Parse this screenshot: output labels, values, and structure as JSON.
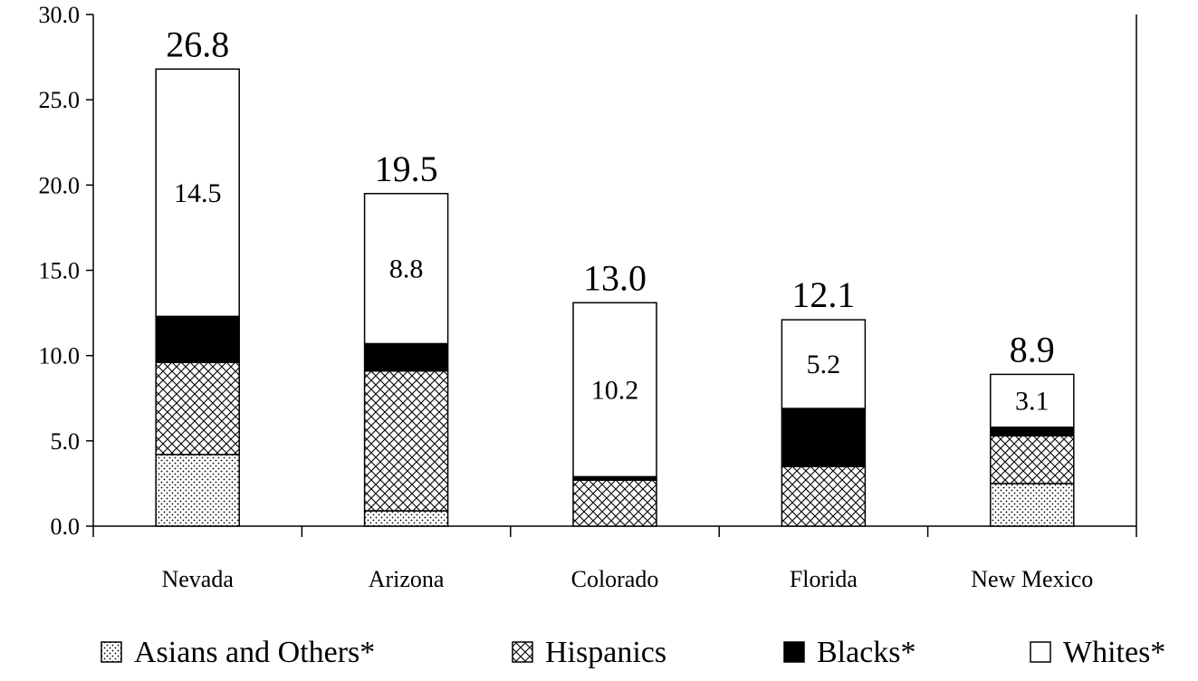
{
  "chart_data": {
    "type": "bar",
    "stacked": true,
    "categories": [
      "Nevada",
      "Arizona",
      "Colorado",
      "Florida",
      "New Mexico"
    ],
    "series": [
      {
        "name": "Asians and Others*",
        "pattern": "dots",
        "values": [
          4.2,
          0.9,
          0.0,
          0.0,
          2.5
        ]
      },
      {
        "name": "Hispanics",
        "pattern": "crosshatch",
        "values": [
          5.4,
          8.2,
          2.7,
          3.5,
          2.8
        ]
      },
      {
        "name": "Blacks*",
        "pattern": "solid",
        "values": [
          2.7,
          1.6,
          0.2,
          3.4,
          0.5
        ]
      },
      {
        "name": "Whites*",
        "pattern": "none",
        "values": [
          14.5,
          8.8,
          10.2,
          5.2,
          3.1
        ]
      }
    ],
    "totals": [
      "26.8",
      "19.5",
      "13.0",
      "12.1",
      "8.9"
    ],
    "segment_labels": [
      "14.5",
      "8.8",
      "10.2",
      "5.2",
      "3.1"
    ],
    "ylim": [
      0,
      30
    ],
    "yticks": [
      "0.0",
      "5.0",
      "10.0",
      "15.0",
      "20.0",
      "25.0",
      "30.0"
    ],
    "grid": false,
    "legend_position": "bottom",
    "title": "",
    "xlabel": "",
    "ylabel": ""
  }
}
